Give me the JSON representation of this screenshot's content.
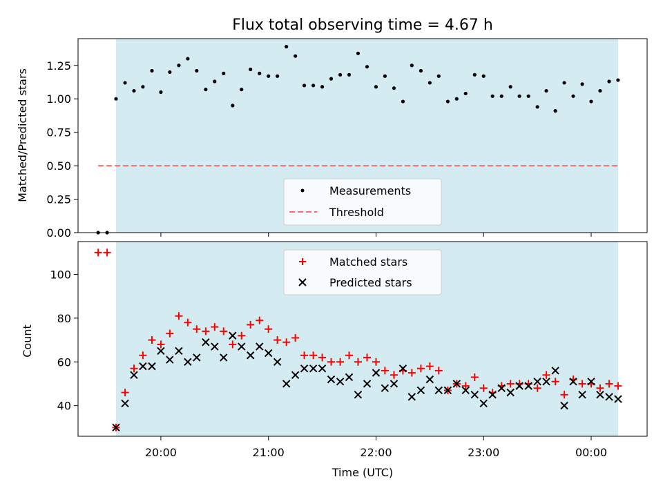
{
  "title": "Flux total observing time = 4.67 h",
  "colors": {
    "span": "#add8e6",
    "measurement": "#000000",
    "threshold": "#ff6b6b",
    "matched": "#ff0000",
    "predicted": "#000000"
  },
  "chart_data": [
    {
      "type": "scatter",
      "panel": "top",
      "ylabel": "Matched/Predicted stars",
      "ylim": [
        0,
        1.45
      ],
      "xlim_hours": [
        19.23,
        24.52
      ],
      "yticks": [
        0.0,
        0.25,
        0.5,
        0.75,
        1.0,
        1.25
      ],
      "ytick_labels": [
        "0.00",
        "0.25",
        "0.50",
        "0.75",
        "1.00",
        "1.25"
      ],
      "observing_span_hours": [
        19.583,
        24.25
      ],
      "threshold": 0.5,
      "threshold_range_hours": [
        19.417,
        24.25
      ],
      "legend_position": "lower center",
      "legend": [
        "Measurements",
        "Threshold"
      ],
      "series": [
        {
          "name": "Measurements",
          "marker": "dot",
          "x": [
            19.417,
            19.5,
            19.583,
            19.667,
            19.75,
            19.833,
            19.917,
            20.0,
            20.083,
            20.167,
            20.25,
            20.333,
            20.417,
            20.5,
            20.583,
            20.667,
            20.75,
            20.833,
            20.917,
            21.0,
            21.083,
            21.167,
            21.25,
            21.333,
            21.417,
            21.5,
            21.583,
            21.667,
            21.75,
            21.833,
            21.917,
            22.0,
            22.083,
            22.167,
            22.25,
            22.333,
            22.417,
            22.5,
            22.583,
            22.667,
            22.75,
            22.833,
            22.917,
            23.0,
            23.083,
            23.167,
            23.25,
            23.333,
            23.417,
            23.5,
            23.583,
            23.667,
            23.75,
            23.833,
            23.917,
            24.0,
            24.083,
            24.167,
            24.25
          ],
          "y": [
            0.0,
            0.0,
            1.0,
            1.12,
            1.06,
            1.09,
            1.21,
            1.05,
            1.2,
            1.25,
            1.3,
            1.21,
            1.07,
            1.13,
            1.19,
            0.95,
            1.07,
            1.22,
            1.19,
            1.17,
            1.17,
            1.39,
            1.32,
            1.1,
            1.1,
            1.09,
            1.15,
            1.18,
            1.18,
            1.34,
            1.24,
            1.09,
            1.17,
            1.08,
            0.98,
            1.25,
            1.21,
            1.12,
            1.17,
            0.98,
            1.0,
            1.04,
            1.18,
            1.17,
            1.02,
            1.02,
            1.09,
            1.02,
            1.02,
            0.94,
            1.06,
            0.91,
            1.12,
            1.02,
            1.11,
            0.98,
            1.06,
            1.13,
            1.14
          ]
        },
        {
          "name": "Threshold",
          "style": "dashed",
          "x": [
            19.417,
            24.25
          ],
          "y": [
            0.5,
            0.5
          ]
        }
      ]
    },
    {
      "type": "scatter",
      "panel": "bottom",
      "xlabel": "Time (UTC)",
      "ylabel": "Count",
      "ylim": [
        26,
        115
      ],
      "xlim_hours": [
        19.23,
        24.52
      ],
      "yticks": [
        40,
        60,
        80,
        100
      ],
      "xticks_hours": [
        20,
        21,
        22,
        23,
        24
      ],
      "xtick_labels": [
        "20:00",
        "21:00",
        "22:00",
        "23:00",
        "00:00"
      ],
      "observing_span_hours": [
        19.583,
        24.25
      ],
      "legend_position": "upper center",
      "legend": [
        "Matched stars",
        "Predicted stars"
      ],
      "series": [
        {
          "name": "Matched stars",
          "marker": "plus",
          "x": [
            19.417,
            19.5,
            19.583,
            19.667,
            19.75,
            19.833,
            19.917,
            20.0,
            20.083,
            20.167,
            20.25,
            20.333,
            20.417,
            20.5,
            20.583,
            20.667,
            20.75,
            20.833,
            20.917,
            21.0,
            21.083,
            21.167,
            21.25,
            21.333,
            21.417,
            21.5,
            21.583,
            21.667,
            21.75,
            21.833,
            21.917,
            22.0,
            22.083,
            22.167,
            22.25,
            22.333,
            22.417,
            22.5,
            22.583,
            22.667,
            22.75,
            22.833,
            22.917,
            23.0,
            23.083,
            23.167,
            23.25,
            23.333,
            23.417,
            23.5,
            23.583,
            23.667,
            23.75,
            23.833,
            23.917,
            24.0,
            24.083,
            24.167,
            24.25
          ],
          "y": [
            110,
            110,
            30,
            46,
            57,
            63,
            70,
            68,
            73,
            81,
            78,
            75,
            74,
            76,
            74,
            68,
            72,
            77,
            79,
            75,
            70,
            69,
            71,
            63,
            63,
            62,
            60,
            60,
            63,
            60,
            62,
            60,
            56,
            54,
            56,
            55,
            57,
            58,
            56,
            47,
            50,
            49,
            53,
            48,
            46,
            49,
            50,
            50,
            50,
            48,
            54,
            51,
            45,
            52,
            50,
            50,
            48,
            50,
            49
          ]
        },
        {
          "name": "Predicted stars",
          "marker": "x",
          "x": [
            19.583,
            19.667,
            19.75,
            19.833,
            19.917,
            20.0,
            20.083,
            20.167,
            20.25,
            20.333,
            20.417,
            20.5,
            20.583,
            20.667,
            20.75,
            20.833,
            20.917,
            21.0,
            21.083,
            21.167,
            21.25,
            21.333,
            21.417,
            21.5,
            21.583,
            21.667,
            21.75,
            21.833,
            21.917,
            22.0,
            22.083,
            22.167,
            22.25,
            22.333,
            22.417,
            22.5,
            22.583,
            22.667,
            22.75,
            22.833,
            22.917,
            23.0,
            23.083,
            23.167,
            23.25,
            23.333,
            23.417,
            23.5,
            23.583,
            23.667,
            23.75,
            23.833,
            23.917,
            24.0,
            24.083,
            24.167,
            24.25
          ],
          "y": [
            30,
            41,
            54,
            58,
            58,
            65,
            61,
            65,
            60,
            62,
            69,
            67,
            62,
            72,
            67,
            63,
            67,
            64,
            60,
            50,
            54,
            57,
            57,
            57,
            52,
            51,
            53,
            45,
            50,
            55,
            48,
            50,
            57,
            44,
            47,
            52,
            47,
            47,
            50,
            47,
            45,
            41,
            45,
            48,
            46,
            49,
            49,
            51,
            51,
            56,
            40,
            51,
            45,
            51,
            45,
            44,
            43
          ]
        }
      ]
    }
  ]
}
